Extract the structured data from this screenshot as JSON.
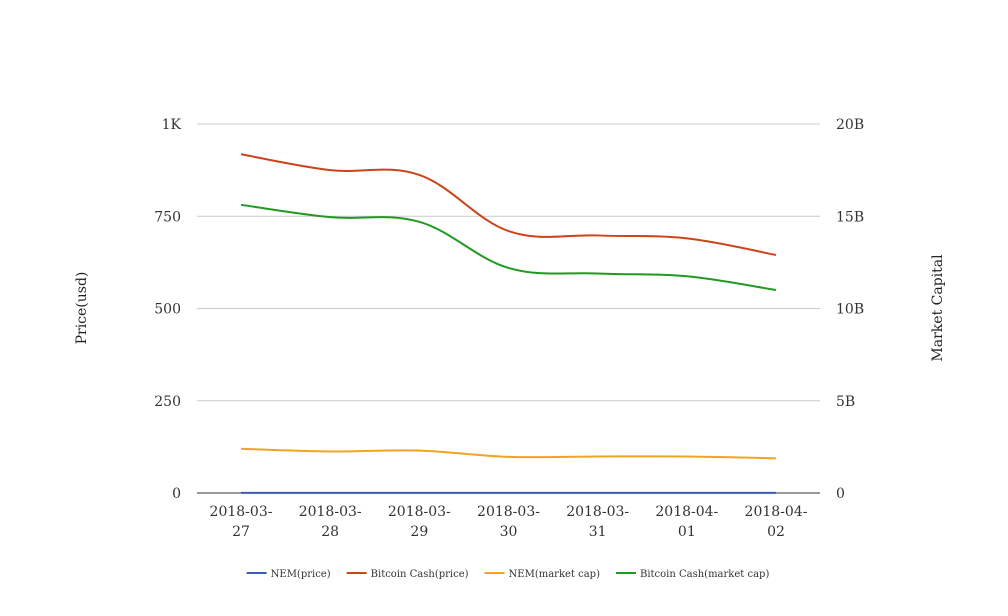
{
  "chart_data": {
    "type": "line",
    "categories": [
      [
        "2018-03-",
        "27"
      ],
      [
        "2018-03-",
        "28"
      ],
      [
        "2018-03-",
        "29"
      ],
      [
        "2018-03-",
        "30"
      ],
      [
        "2018-03-",
        "31"
      ],
      [
        "2018-04-",
        "01"
      ],
      [
        "2018-04-",
        "02"
      ]
    ],
    "y_left": {
      "label": "Price(usd)",
      "range": [
        0,
        1000
      ],
      "ticks": [
        0,
        250,
        500,
        750,
        1000
      ],
      "tick_labels": [
        "0",
        "250",
        "500",
        "750",
        "1K"
      ]
    },
    "y_right": {
      "label": "Market Capital",
      "range": [
        0,
        20000000000
      ],
      "ticks": [
        0,
        5000000000,
        10000000000,
        15000000000,
        20000000000
      ],
      "tick_labels": [
        "0",
        "5B",
        "10B",
        "15B",
        "20B"
      ]
    },
    "grid": true,
    "legend_position": "bottom-center",
    "series": [
      {
        "name": "NEM(price)",
        "axis": "left",
        "color": "#3b5bb5",
        "values": [
          0.29,
          0.27,
          0.26,
          0.22,
          0.22,
          0.23,
          0.21
        ]
      },
      {
        "name": "Bitcoin Cash(price)",
        "axis": "left",
        "color": "#cc4418",
        "values": [
          918,
          875,
          862,
          710,
          698,
          690,
          645
        ]
      },
      {
        "name": "NEM(market cap)",
        "axis": "right",
        "color": "#f0a422",
        "values": [
          2400000000,
          2250000000,
          2300000000,
          1960000000,
          1980000000,
          1980000000,
          1880000000
        ]
      },
      {
        "name": "Bitcoin Cash(market cap)",
        "axis": "right",
        "color": "#209a20",
        "values": [
          15620000000,
          14950000000,
          14700000000,
          12200000000,
          11900000000,
          11750000000,
          11000000000
        ]
      }
    ]
  }
}
